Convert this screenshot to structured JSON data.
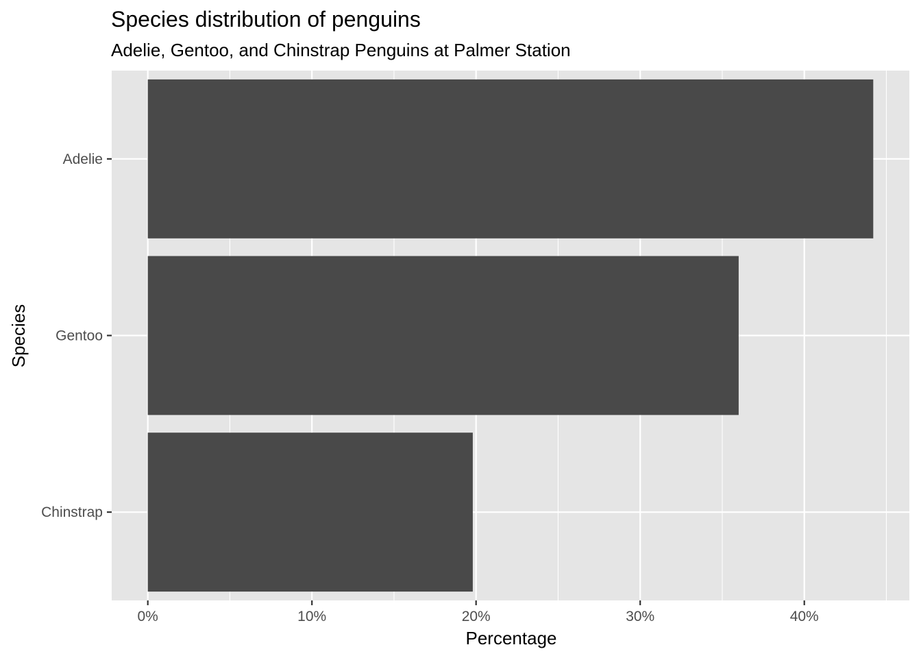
{
  "chart_data": {
    "type": "bar",
    "orientation": "horizontal",
    "title": "Species distribution of penguins",
    "subtitle": "Adelie, Gentoo, and Chinstrap Penguins at Palmer Station",
    "xlabel": "Percentage",
    "ylabel": "Species",
    "categories": [
      "Adelie",
      "Gentoo",
      "Chinstrap"
    ],
    "values": [
      44.2,
      36.0,
      19.8
    ],
    "xlim": [
      -2.2,
      46.4
    ],
    "xticks": [
      0,
      10,
      20,
      30,
      40
    ],
    "xtick_labels": [
      "0%",
      "10%",
      "20%",
      "30%",
      "40%"
    ],
    "grid": true,
    "colors": {
      "panel": "#e5e5e5",
      "grid": "#ffffff",
      "bar": "#494949",
      "tick": "#333333"
    }
  }
}
